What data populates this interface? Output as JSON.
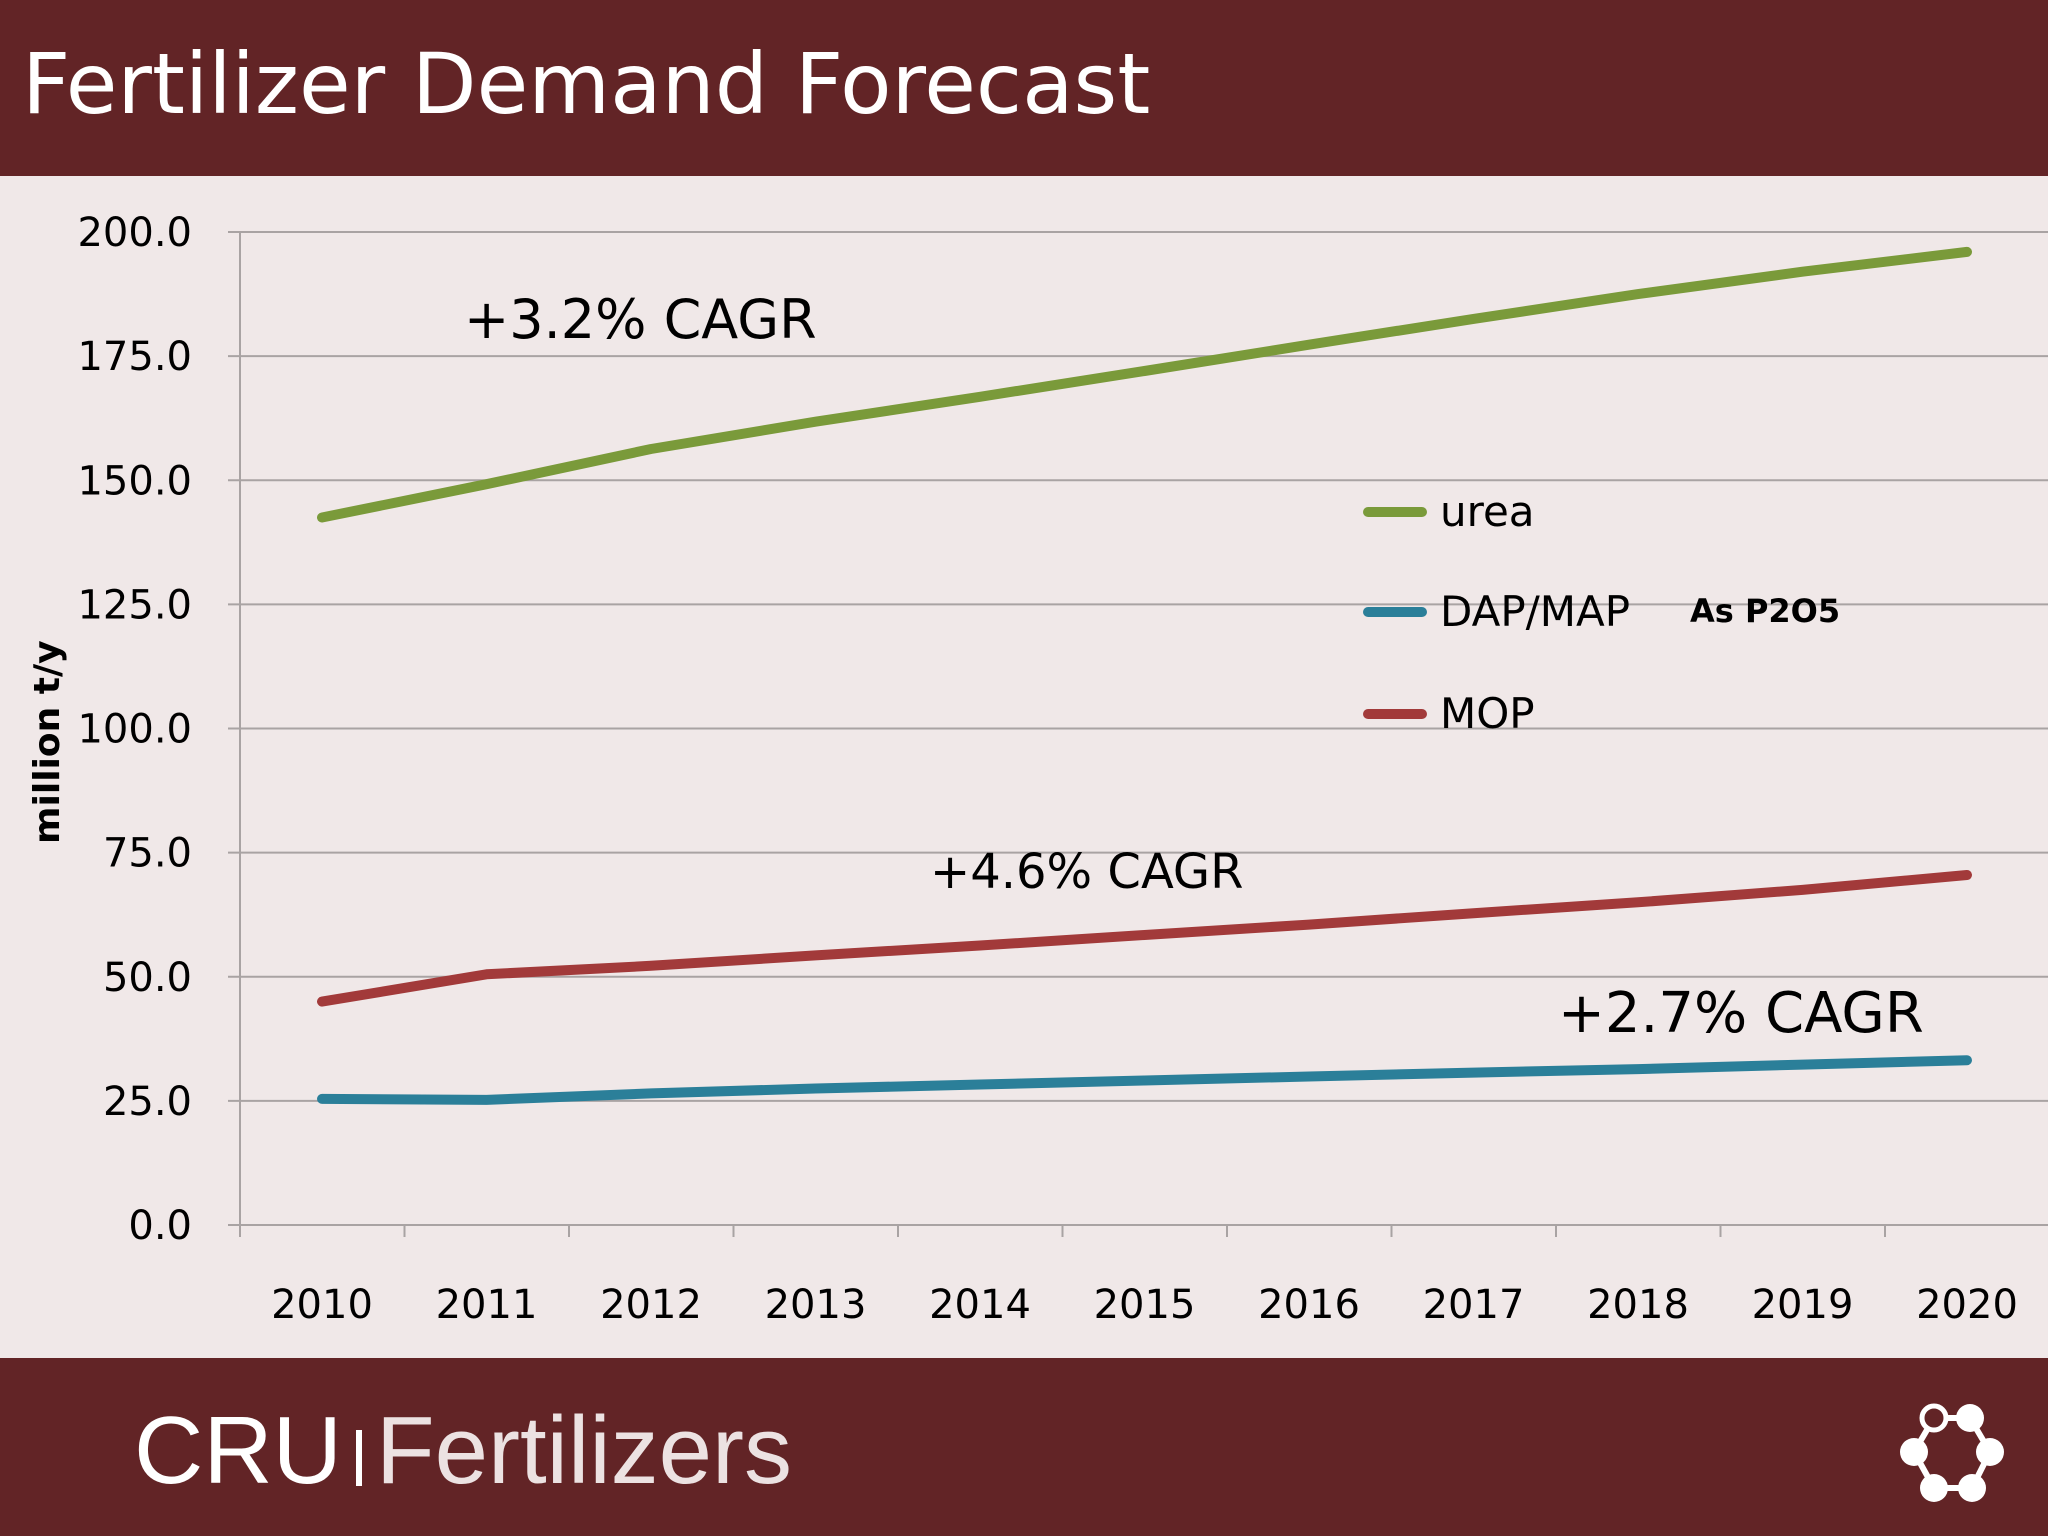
{
  "header": {
    "title": "Fertilizer Demand Forecast"
  },
  "footer": {
    "brand_cru": "CRU",
    "brand_product": "Fertilizers",
    "logo_icon": "cru-ring-logo-icon"
  },
  "colors": {
    "band": "#622426",
    "background": "#f0e8e8",
    "urea": "#7a9a3a",
    "dap_map": "#2b7f99",
    "mop": "#a23a3a"
  },
  "chart_data": {
    "type": "line",
    "title": "",
    "xlabel": "",
    "ylabel": "million t/y",
    "ylim": [
      0,
      200
    ],
    "yticks": [
      "0.0",
      "25.0",
      "50.0",
      "75.0",
      "100.0",
      "125.0",
      "150.0",
      "175.0",
      "200.0"
    ],
    "categories": [
      "2010",
      "2011",
      "2012",
      "2013",
      "2014",
      "2015",
      "2016",
      "2017",
      "2018",
      "2019",
      "2020"
    ],
    "grid": true,
    "legend_position": "center-right",
    "legend_note": "As P2O5",
    "series": [
      {
        "name": "urea",
        "color": "#7a9a3a",
        "values": [
          142.5,
          149.2,
          156.3,
          161.8,
          166.8,
          172.0,
          177.3,
          182.5,
          187.5,
          192.0,
          196.0
        ]
      },
      {
        "name": "DAP/MAP",
        "color": "#2b7f99",
        "values": [
          25.4,
          25.2,
          26.5,
          27.5,
          28.3,
          29.1,
          29.9,
          30.7,
          31.4,
          32.3,
          33.2
        ]
      },
      {
        "name": "MOP",
        "color": "#a23a3a",
        "values": [
          45.0,
          50.5,
          52.2,
          54.3,
          56.3,
          58.4,
          60.5,
          62.8,
          65.0,
          67.5,
          70.5
        ]
      }
    ],
    "annotations": [
      {
        "text": "+3.2% CAGR",
        "series": "urea"
      },
      {
        "text": "+4.6% CAGR",
        "series": "MOP"
      },
      {
        "text": "+2.7% CAGR",
        "series": "DAP/MAP"
      }
    ]
  }
}
